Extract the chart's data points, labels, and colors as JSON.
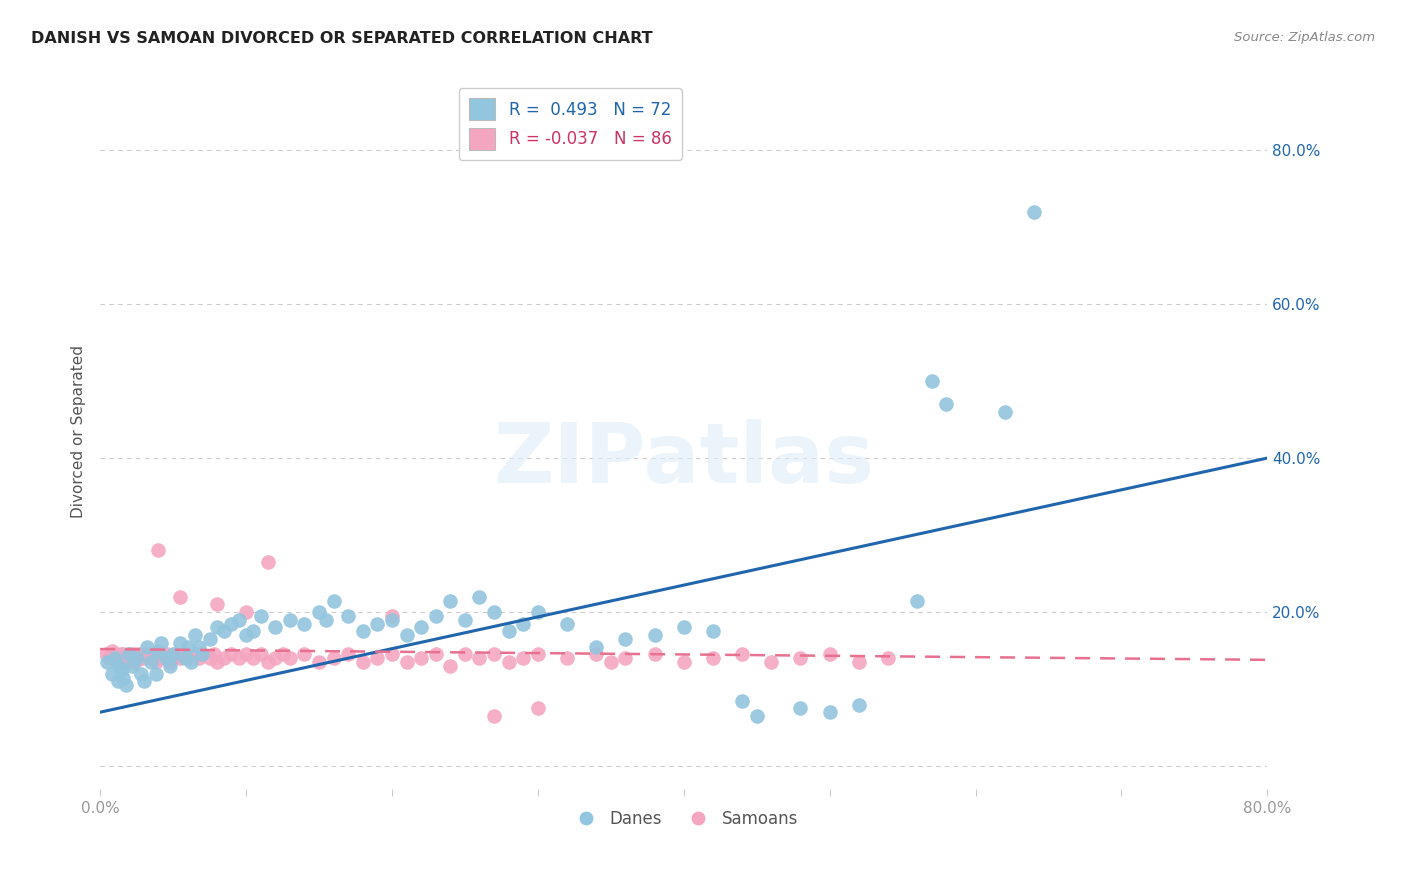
{
  "title": "DANISH VS SAMOAN DIVORCED OR SEPARATED CORRELATION CHART",
  "source": "Source: ZipAtlas.com",
  "ylabel": "Divorced or Separated",
  "xlim": [
    0.0,
    0.8
  ],
  "ylim": [
    -0.03,
    0.9
  ],
  "legend_blue_R": "0.493",
  "legend_blue_N": "72",
  "legend_pink_R": "-0.037",
  "legend_pink_N": "86",
  "blue_color": "#92c5de",
  "pink_color": "#f4a6c0",
  "blue_line_color": "#2166ac",
  "pink_line_color": "#e87090",
  "watermark": "ZIPatlas",
  "blue_line_x": [
    0.0,
    0.8
  ],
  "blue_line_y": [
    0.07,
    0.4
  ],
  "pink_line_x": [
    0.0,
    0.8
  ],
  "pink_line_y": [
    0.152,
    0.138
  ],
  "grid_color": "#cccccc",
  "bg_color": "#ffffff",
  "blue_x": [
    0.005,
    0.008,
    0.01,
    0.012,
    0.013,
    0.015,
    0.016,
    0.018,
    0.02,
    0.022,
    0.025,
    0.028,
    0.03,
    0.032,
    0.035,
    0.038,
    0.04,
    0.042,
    0.045,
    0.048,
    0.05,
    0.055,
    0.058,
    0.06,
    0.062,
    0.065,
    0.068,
    0.07,
    0.075,
    0.08,
    0.085,
    0.09,
    0.095,
    0.1,
    0.105,
    0.11,
    0.12,
    0.13,
    0.14,
    0.15,
    0.155,
    0.16,
    0.17,
    0.18,
    0.19,
    0.2,
    0.21,
    0.22,
    0.23,
    0.24,
    0.25,
    0.26,
    0.27,
    0.28,
    0.29,
    0.3,
    0.32,
    0.34,
    0.36,
    0.38,
    0.4,
    0.42,
    0.44,
    0.45,
    0.48,
    0.5,
    0.52,
    0.56,
    0.57,
    0.58,
    0.62,
    0.64
  ],
  "blue_y": [
    0.135,
    0.12,
    0.14,
    0.11,
    0.13,
    0.125,
    0.115,
    0.105,
    0.145,
    0.13,
    0.14,
    0.12,
    0.11,
    0.155,
    0.135,
    0.12,
    0.15,
    0.16,
    0.14,
    0.13,
    0.145,
    0.16,
    0.14,
    0.155,
    0.135,
    0.17,
    0.155,
    0.145,
    0.165,
    0.18,
    0.175,
    0.185,
    0.19,
    0.17,
    0.175,
    0.195,
    0.18,
    0.19,
    0.185,
    0.2,
    0.19,
    0.215,
    0.195,
    0.175,
    0.185,
    0.19,
    0.17,
    0.18,
    0.195,
    0.215,
    0.19,
    0.22,
    0.2,
    0.175,
    0.185,
    0.2,
    0.185,
    0.155,
    0.165,
    0.17,
    0.18,
    0.175,
    0.085,
    0.065,
    0.075,
    0.07,
    0.08,
    0.215,
    0.5,
    0.47,
    0.46,
    0.72
  ],
  "pink_x": [
    0.004,
    0.006,
    0.008,
    0.009,
    0.01,
    0.011,
    0.012,
    0.013,
    0.014,
    0.015,
    0.016,
    0.017,
    0.018,
    0.019,
    0.02,
    0.021,
    0.022,
    0.023,
    0.024,
    0.025,
    0.026,
    0.027,
    0.028,
    0.029,
    0.03,
    0.032,
    0.033,
    0.035,
    0.036,
    0.038,
    0.04,
    0.042,
    0.044,
    0.046,
    0.048,
    0.05,
    0.052,
    0.055,
    0.058,
    0.06,
    0.065,
    0.068,
    0.07,
    0.075,
    0.078,
    0.08,
    0.085,
    0.09,
    0.095,
    0.1,
    0.105,
    0.11,
    0.115,
    0.12,
    0.125,
    0.13,
    0.14,
    0.15,
    0.16,
    0.17,
    0.18,
    0.19,
    0.2,
    0.21,
    0.22,
    0.23,
    0.24,
    0.25,
    0.26,
    0.27,
    0.28,
    0.29,
    0.3,
    0.32,
    0.34,
    0.35,
    0.36,
    0.38,
    0.4,
    0.42,
    0.44,
    0.46,
    0.48,
    0.5,
    0.52,
    0.54
  ],
  "pink_y": [
    0.145,
    0.14,
    0.15,
    0.145,
    0.14,
    0.145,
    0.135,
    0.14,
    0.145,
    0.14,
    0.145,
    0.135,
    0.14,
    0.145,
    0.14,
    0.145,
    0.14,
    0.145,
    0.135,
    0.14,
    0.145,
    0.14,
    0.145,
    0.14,
    0.145,
    0.14,
    0.145,
    0.14,
    0.145,
    0.135,
    0.14,
    0.145,
    0.14,
    0.145,
    0.135,
    0.14,
    0.145,
    0.14,
    0.145,
    0.14,
    0.145,
    0.14,
    0.145,
    0.14,
    0.145,
    0.135,
    0.14,
    0.145,
    0.14,
    0.145,
    0.14,
    0.145,
    0.135,
    0.14,
    0.145,
    0.14,
    0.145,
    0.135,
    0.14,
    0.145,
    0.135,
    0.14,
    0.145,
    0.135,
    0.14,
    0.145,
    0.13,
    0.145,
    0.14,
    0.145,
    0.135,
    0.14,
    0.145,
    0.14,
    0.145,
    0.135,
    0.14,
    0.145,
    0.135,
    0.14,
    0.145,
    0.135,
    0.14,
    0.145,
    0.135,
    0.14
  ],
  "pink_outlier_x": [
    0.04,
    0.055,
    0.08,
    0.1,
    0.115,
    0.2,
    0.27,
    0.3
  ],
  "pink_outlier_y": [
    0.28,
    0.22,
    0.21,
    0.2,
    0.265,
    0.195,
    0.065,
    0.075
  ]
}
